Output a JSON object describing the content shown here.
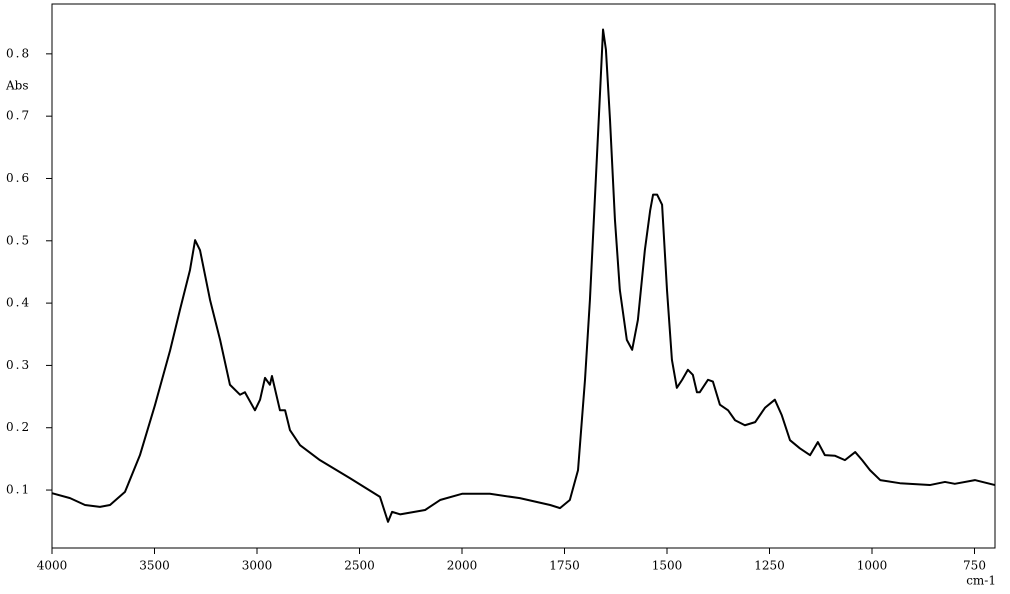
{
  "chart_data": {
    "type": "line",
    "x_label": "cm-1",
    "y_label": "Abs",
    "xlim": [
      4000,
      700
    ],
    "x_scale_break": 2000,
    "ylim": [
      0.007,
      0.88
    ],
    "xticks": [
      4000,
      3500,
      3000,
      2500,
      2000,
      1750,
      1500,
      1250,
      1000,
      750
    ],
    "yticks": [
      0.1,
      0.2,
      0.3,
      0.4,
      0.5,
      0.6,
      0.7,
      0.8
    ],
    "series": [
      {
        "color": "#000000",
        "x": [
          4000,
          3912,
          3839,
          3766,
          3717,
          3644,
          3571,
          3498,
          3424,
          3376,
          3327,
          3302,
          3278,
          3229,
          3180,
          3132,
          3083,
          3059,
          3010,
          2985,
          2961,
          2937,
          2927,
          2888,
          2863,
          2839,
          2790,
          2693,
          2546,
          2400,
          2361,
          2341,
          2302,
          2180,
          2107,
          2000,
          1932,
          1859,
          1785,
          1761,
          1737,
          1717,
          1700,
          1688,
          1676,
          1663,
          1656,
          1649,
          1639,
          1627,
          1615,
          1598,
          1585,
          1571,
          1554,
          1541,
          1534,
          1524,
          1512,
          1500,
          1488,
          1476,
          1463,
          1449,
          1437,
          1427,
          1420,
          1400,
          1388,
          1371,
          1351,
          1334,
          1310,
          1285,
          1261,
          1237,
          1220,
          1200,
          1176,
          1151,
          1132,
          1115,
          1090,
          1066,
          1041,
          1024,
          1005,
          980,
          932,
          859,
          822,
          798,
          749,
          700
        ],
        "values": [
          0.095,
          0.087,
          0.076,
          0.073,
          0.076,
          0.097,
          0.156,
          0.236,
          0.324,
          0.389,
          0.453,
          0.501,
          0.485,
          0.405,
          0.341,
          0.269,
          0.253,
          0.257,
          0.228,
          0.245,
          0.28,
          0.269,
          0.283,
          0.228,
          0.228,
          0.196,
          0.172,
          0.148,
          0.119,
          0.089,
          0.049,
          0.065,
          0.061,
          0.068,
          0.084,
          0.094,
          0.094,
          0.087,
          0.076,
          0.071,
          0.084,
          0.132,
          0.277,
          0.405,
          0.566,
          0.742,
          0.839,
          0.807,
          0.694,
          0.534,
          0.421,
          0.341,
          0.325,
          0.373,
          0.485,
          0.549,
          0.574,
          0.574,
          0.558,
          0.421,
          0.309,
          0.264,
          0.277,
          0.293,
          0.285,
          0.257,
          0.257,
          0.277,
          0.274,
          0.237,
          0.228,
          0.212,
          0.204,
          0.209,
          0.232,
          0.245,
          0.22,
          0.18,
          0.167,
          0.156,
          0.177,
          0.156,
          0.155,
          0.148,
          0.161,
          0.148,
          0.132,
          0.116,
          0.111,
          0.108,
          0.113,
          0.11,
          0.116,
          0.108
        ]
      }
    ]
  }
}
